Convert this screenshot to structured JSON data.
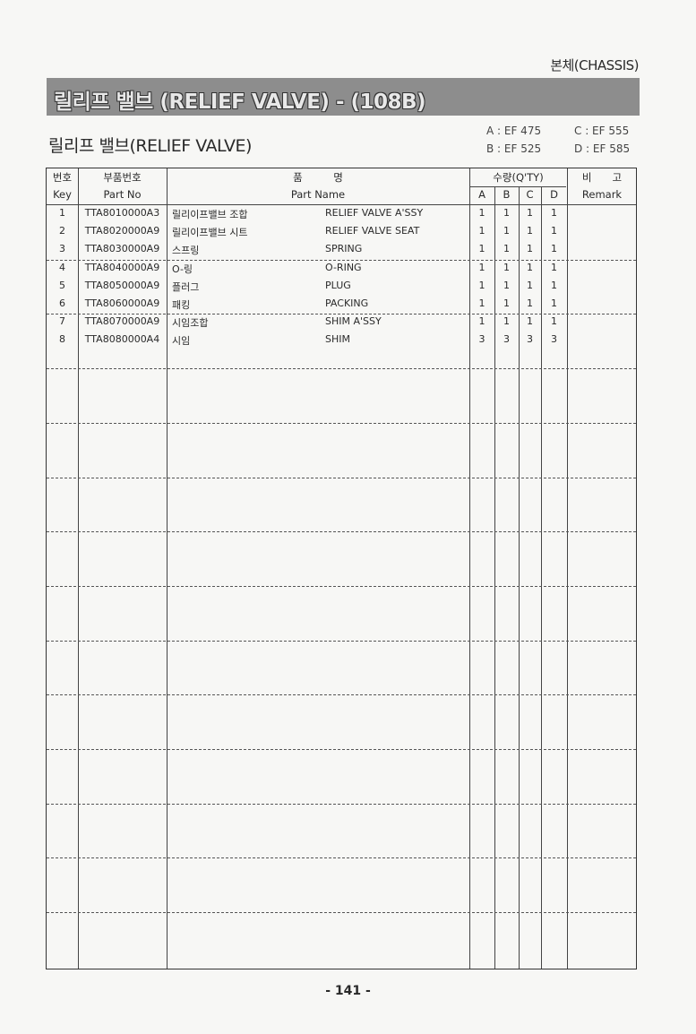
{
  "section": "본체(CHASSIS)",
  "banner_title": "릴리프 밸브 (RELIEF VALVE) - (108B)",
  "subtitle": "릴리프 밸브(RELIEF VALVE)",
  "models": [
    {
      "label": "A : EF 475"
    },
    {
      "label": "B : EF 525"
    },
    {
      "label": "C : EF 555"
    },
    {
      "label": "D : EF 585"
    }
  ],
  "table": {
    "headers": {
      "key_ko": "번호",
      "key_en": "Key",
      "partno_ko": "부품번호",
      "partno_en": "Part No",
      "name_ko": "품　　　명",
      "name_en": "Part Name",
      "qty": "수량(Q'TY)",
      "qty_a": "A",
      "qty_b": "B",
      "qty_c": "C",
      "qty_d": "D",
      "remark_ko": "비　　고",
      "remark_en": "Remark"
    },
    "rows": [
      {
        "key": "1",
        "part_no": "TTA8010000A3",
        "name_ko": "릴리이프밸브 조합",
        "name_en": "RELIEF VALVE A'SSY",
        "a": "1",
        "b": "1",
        "c": "1",
        "d": "1",
        "remark": ""
      },
      {
        "key": "2",
        "part_no": "TTA8020000A9",
        "name_ko": "릴리이프밸브 시트",
        "name_en": "RELIEF VALVE SEAT",
        "a": "1",
        "b": "1",
        "c": "1",
        "d": "1",
        "remark": ""
      },
      {
        "key": "3",
        "part_no": "TTA8030000A9",
        "name_ko": "스프링",
        "name_en": "SPRING",
        "a": "1",
        "b": "1",
        "c": "1",
        "d": "1",
        "remark": ""
      },
      {
        "key": "4",
        "part_no": "TTA8040000A9",
        "name_ko": "O-링",
        "name_en": "O-RING",
        "a": "1",
        "b": "1",
        "c": "1",
        "d": "1",
        "remark": ""
      },
      {
        "key": "5",
        "part_no": "TTA8050000A9",
        "name_ko": "플러그",
        "name_en": "PLUG",
        "a": "1",
        "b": "1",
        "c": "1",
        "d": "1",
        "remark": ""
      },
      {
        "key": "6",
        "part_no": "TTA8060000A9",
        "name_ko": "패킹",
        "name_en": "PACKING",
        "a": "1",
        "b": "1",
        "c": "1",
        "d": "1",
        "remark": ""
      },
      {
        "key": "7",
        "part_no": "TTA8070000A9",
        "name_ko": "시임조합",
        "name_en": "SHIM A'SSY",
        "a": "1",
        "b": "1",
        "c": "1",
        "d": "1",
        "remark": ""
      },
      {
        "key": "8",
        "part_no": "TTA8080000A4",
        "name_ko": "시임",
        "name_en": "SHIM",
        "a": "3",
        "b": "3",
        "c": "3",
        "d": "3",
        "remark": ""
      }
    ]
  },
  "page_number": "- 141 -"
}
